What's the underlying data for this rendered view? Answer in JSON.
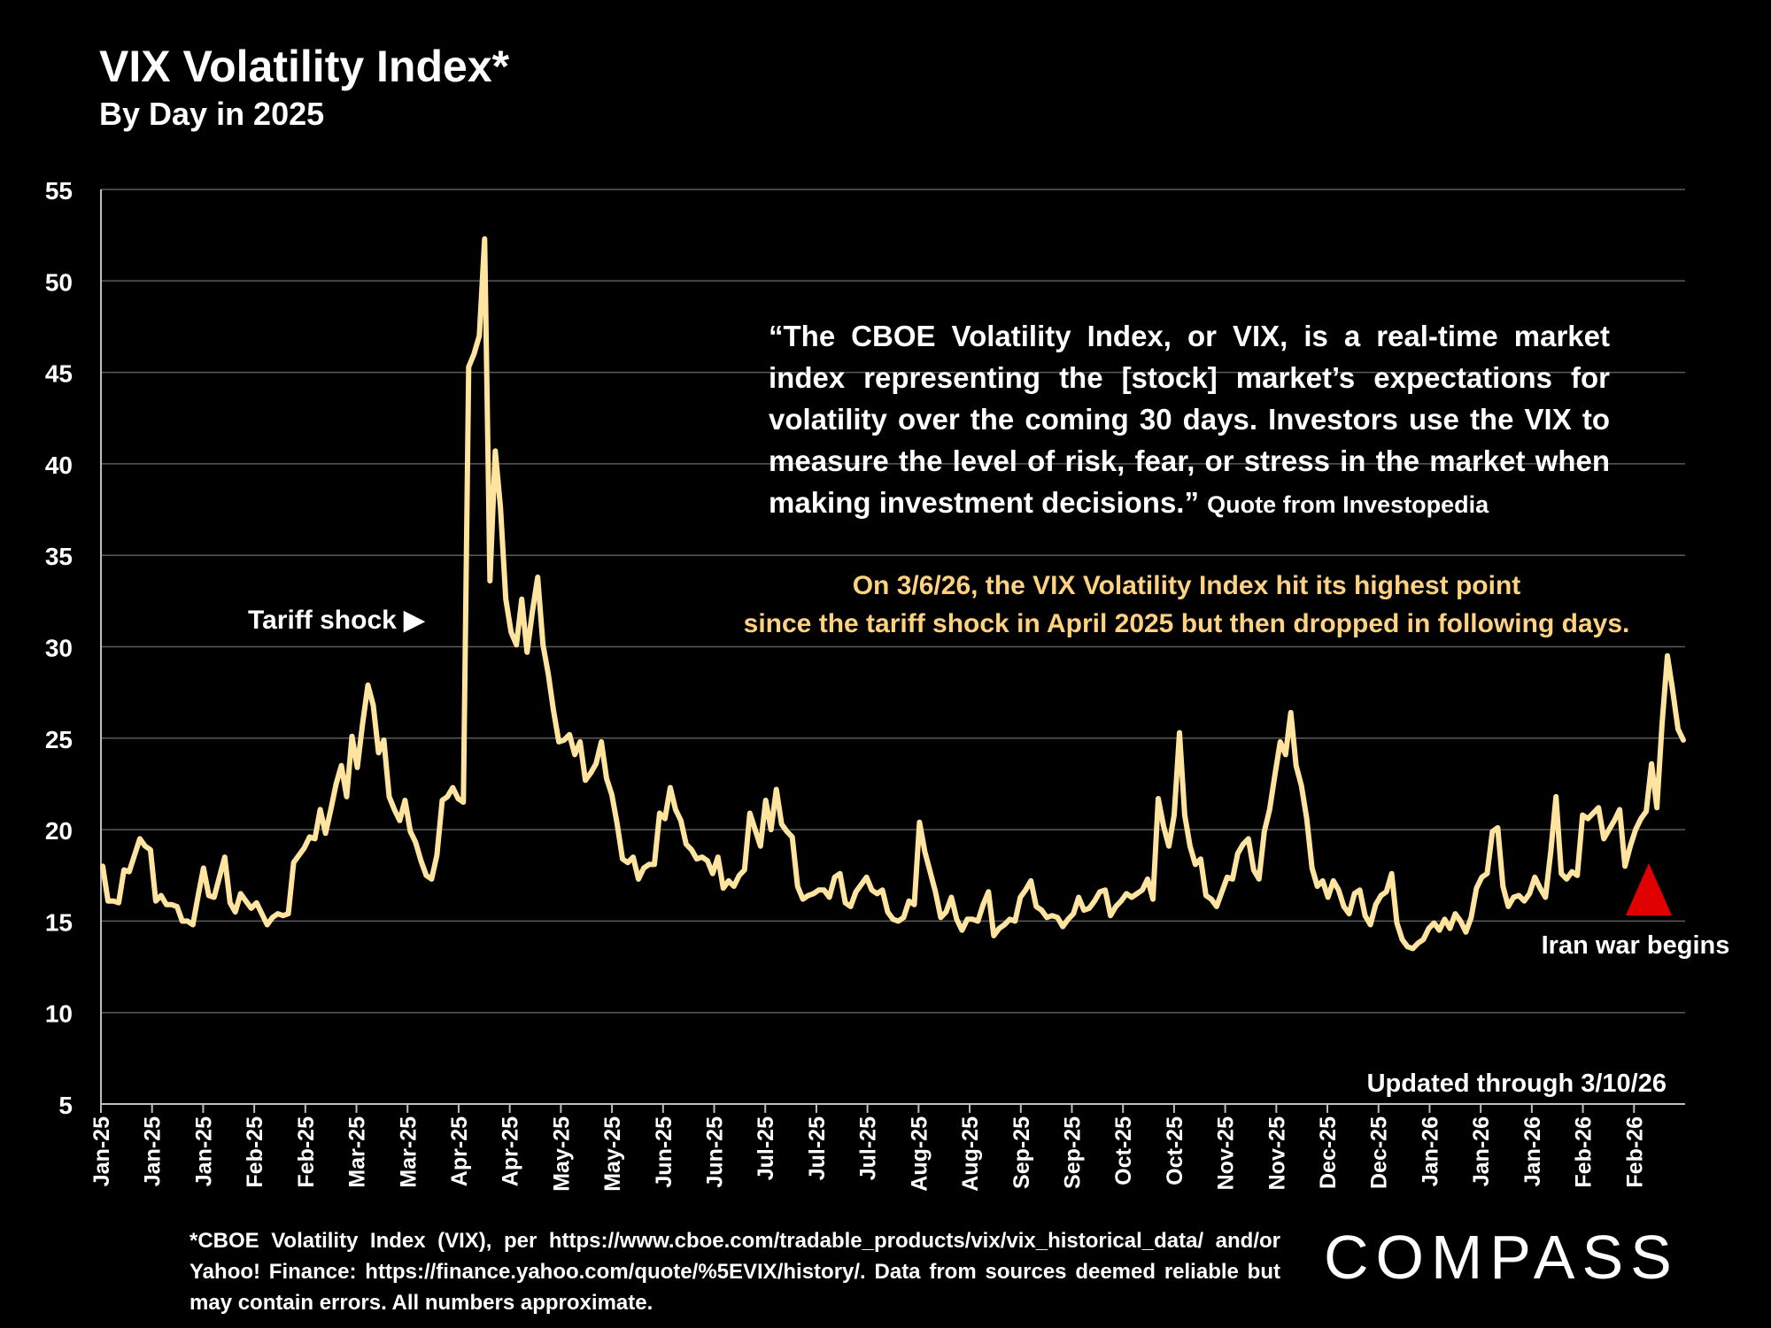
{
  "title": "VIX Volatility Index*",
  "subtitle": "By Day in 2025",
  "quote": {
    "text": "“The CBOE Volatility Index, or VIX, is a real-time market index representing the [stock] market’s expectations for volatility over the coming 30 days. Investors use the VIX to measure the level of risk, fear, or stress in the market when making investment decisions.”",
    "source": "Quote from Investopedia"
  },
  "highlight": {
    "line1": "On 3/6/26, the VIX Volatility Index hit its highest point",
    "line2": "since the tariff shock in April 2025 but then dropped in following days."
  },
  "footnote": "*CBOE Volatility Index (VIX), per https://www.cboe.com/tradable_products/vix/vix_historical_data/ and/or Yahoo! Finance: https://finance.yahoo.com/quote/%5EVIX/history/. Data from sources deemed reliable but may contain errors. All numbers approximate.",
  "brand": "COMPASS",
  "colors": {
    "background": "#000000",
    "line": "#ffe4a0",
    "grid": "#5a5a5a",
    "highlight": "#ffd27f",
    "marker": "#e00000"
  },
  "chart_data": {
    "type": "line",
    "title": "VIX Volatility Index*",
    "subtitle": "By Day in 2025",
    "xlabel": "",
    "ylabel": "",
    "ylim": [
      5,
      55
    ],
    "yticks": [
      5,
      10,
      15,
      20,
      25,
      30,
      35,
      40,
      45,
      50,
      55
    ],
    "grid": true,
    "xtick_labels": [
      "Jan-25",
      "Jan-25",
      "Jan-25",
      "Feb-25",
      "Feb-25",
      "Mar-25",
      "Mar-25",
      "Apr-25",
      "Apr-25",
      "May-25",
      "May-25",
      "Jun-25",
      "Jun-25",
      "Jul-25",
      "Jul-25",
      "Jul-25",
      "Aug-25",
      "Aug-25",
      "Sep-25",
      "Sep-25",
      "Oct-25",
      "Oct-25",
      "Nov-25",
      "Nov-25",
      "Dec-25",
      "Dec-25",
      "Jan-26",
      "Jan-26",
      "Jan-26",
      "Feb-26",
      "Feb-26"
    ],
    "x_start": "2025-01-02",
    "x_end": "2026-03-10",
    "series": [
      {
        "values": [
          18.0,
          16.1,
          16.1,
          16.0,
          17.8,
          17.7,
          18.6,
          19.5,
          19.1,
          18.9,
          16.1,
          16.4,
          15.9,
          15.9,
          15.8,
          15.0,
          15.0,
          14.8,
          16.4,
          17.9,
          16.4,
          16.3,
          17.4,
          18.5,
          16.0,
          15.5,
          16.5,
          16.1,
          15.7,
          16.0,
          15.4,
          14.8,
          15.2,
          15.4,
          15.3,
          15.4,
          18.2,
          18.6,
          19.0,
          19.6,
          19.5,
          21.1,
          19.8,
          21.1,
          22.5,
          23.5,
          21.8,
          25.1,
          23.4,
          25.8,
          27.9,
          26.8,
          24.2,
          24.9,
          21.8,
          21.1,
          20.5,
          21.6,
          19.9,
          19.3,
          18.3,
          17.5,
          17.3,
          18.6,
          21.6,
          21.8,
          22.3,
          21.7,
          21.5,
          45.3,
          46.0,
          47.0,
          52.3,
          33.6,
          40.7,
          37.6,
          32.6,
          30.8,
          30.1,
          32.6,
          29.7,
          31.9,
          33.8,
          30.1,
          28.5,
          26.5,
          24.8,
          24.9,
          25.2,
          24.1,
          24.8,
          22.7,
          23.1,
          23.6,
          24.8,
          22.8,
          21.9,
          20.3,
          18.4,
          18.2,
          18.5,
          17.3,
          17.9,
          18.1,
          18.1,
          20.9,
          20.6,
          22.3,
          21.1,
          20.5,
          19.2,
          18.9,
          18.4,
          18.5,
          18.3,
          17.6,
          18.5,
          16.8,
          17.2,
          16.9,
          17.5,
          17.8,
          20.9,
          20.0,
          19.1,
          21.6,
          20.0,
          22.2,
          20.3,
          19.9,
          19.6,
          16.9,
          16.2,
          16.4,
          16.5,
          16.7,
          16.7,
          16.3,
          17.4,
          17.6,
          16.0,
          15.8,
          16.6,
          17.0,
          17.4,
          16.7,
          16.5,
          16.7,
          15.5,
          15.1,
          15.0,
          15.2,
          16.1,
          15.9,
          20.4,
          18.8,
          17.7,
          16.6,
          15.2,
          15.5,
          16.3,
          15.1,
          14.5,
          15.1,
          15.1,
          15.0,
          15.9,
          16.6,
          14.2,
          14.6,
          14.8,
          15.1,
          15.0,
          16.3,
          16.7,
          17.2,
          15.8,
          15.6,
          15.2,
          15.3,
          15.2,
          14.7,
          15.1,
          15.4,
          16.3,
          15.6,
          15.7,
          16.1,
          16.6,
          16.7,
          15.3,
          15.8,
          16.1,
          16.5,
          16.3,
          16.5,
          16.7,
          17.3,
          16.2,
          21.7,
          20.2,
          19.1,
          20.8,
          25.3,
          20.8,
          19.1,
          18.1,
          18.4,
          16.4,
          16.2,
          15.8,
          16.6,
          17.4,
          17.3,
          18.7,
          19.2,
          19.5,
          17.8,
          17.3,
          19.9,
          21.1,
          23.0,
          24.8,
          24.1,
          26.4,
          23.5,
          22.4,
          20.6,
          17.9,
          16.9,
          17.2,
          16.3,
          17.2,
          16.7,
          15.8,
          15.4,
          16.5,
          16.7,
          15.3,
          14.8,
          15.9,
          16.4,
          16.6,
          17.6,
          14.9,
          14.0,
          13.6,
          13.5,
          13.8,
          14.0,
          14.6,
          14.9,
          14.5,
          15.1,
          14.6,
          15.4,
          15.0,
          14.4,
          15.2,
          16.8,
          17.4,
          17.6,
          19.9,
          20.1,
          16.9,
          15.8,
          16.3,
          16.4,
          16.1,
          16.5,
          17.4,
          16.8,
          16.3,
          18.8,
          21.8,
          17.6,
          17.3,
          17.7,
          17.5,
          20.8,
          20.6,
          20.9,
          21.2,
          19.5,
          20.0,
          20.5,
          21.1,
          18.0,
          19.1,
          20.0,
          20.6,
          21.0,
          23.6,
          21.2,
          25.8,
          29.5,
          27.6,
          25.5,
          24.9
        ]
      }
    ],
    "annotations": [
      {
        "text": "Tariff shock ▶"
      },
      {
        "text": "Iran war begins"
      },
      {
        "text": "Updated through 3/10/26"
      }
    ]
  }
}
